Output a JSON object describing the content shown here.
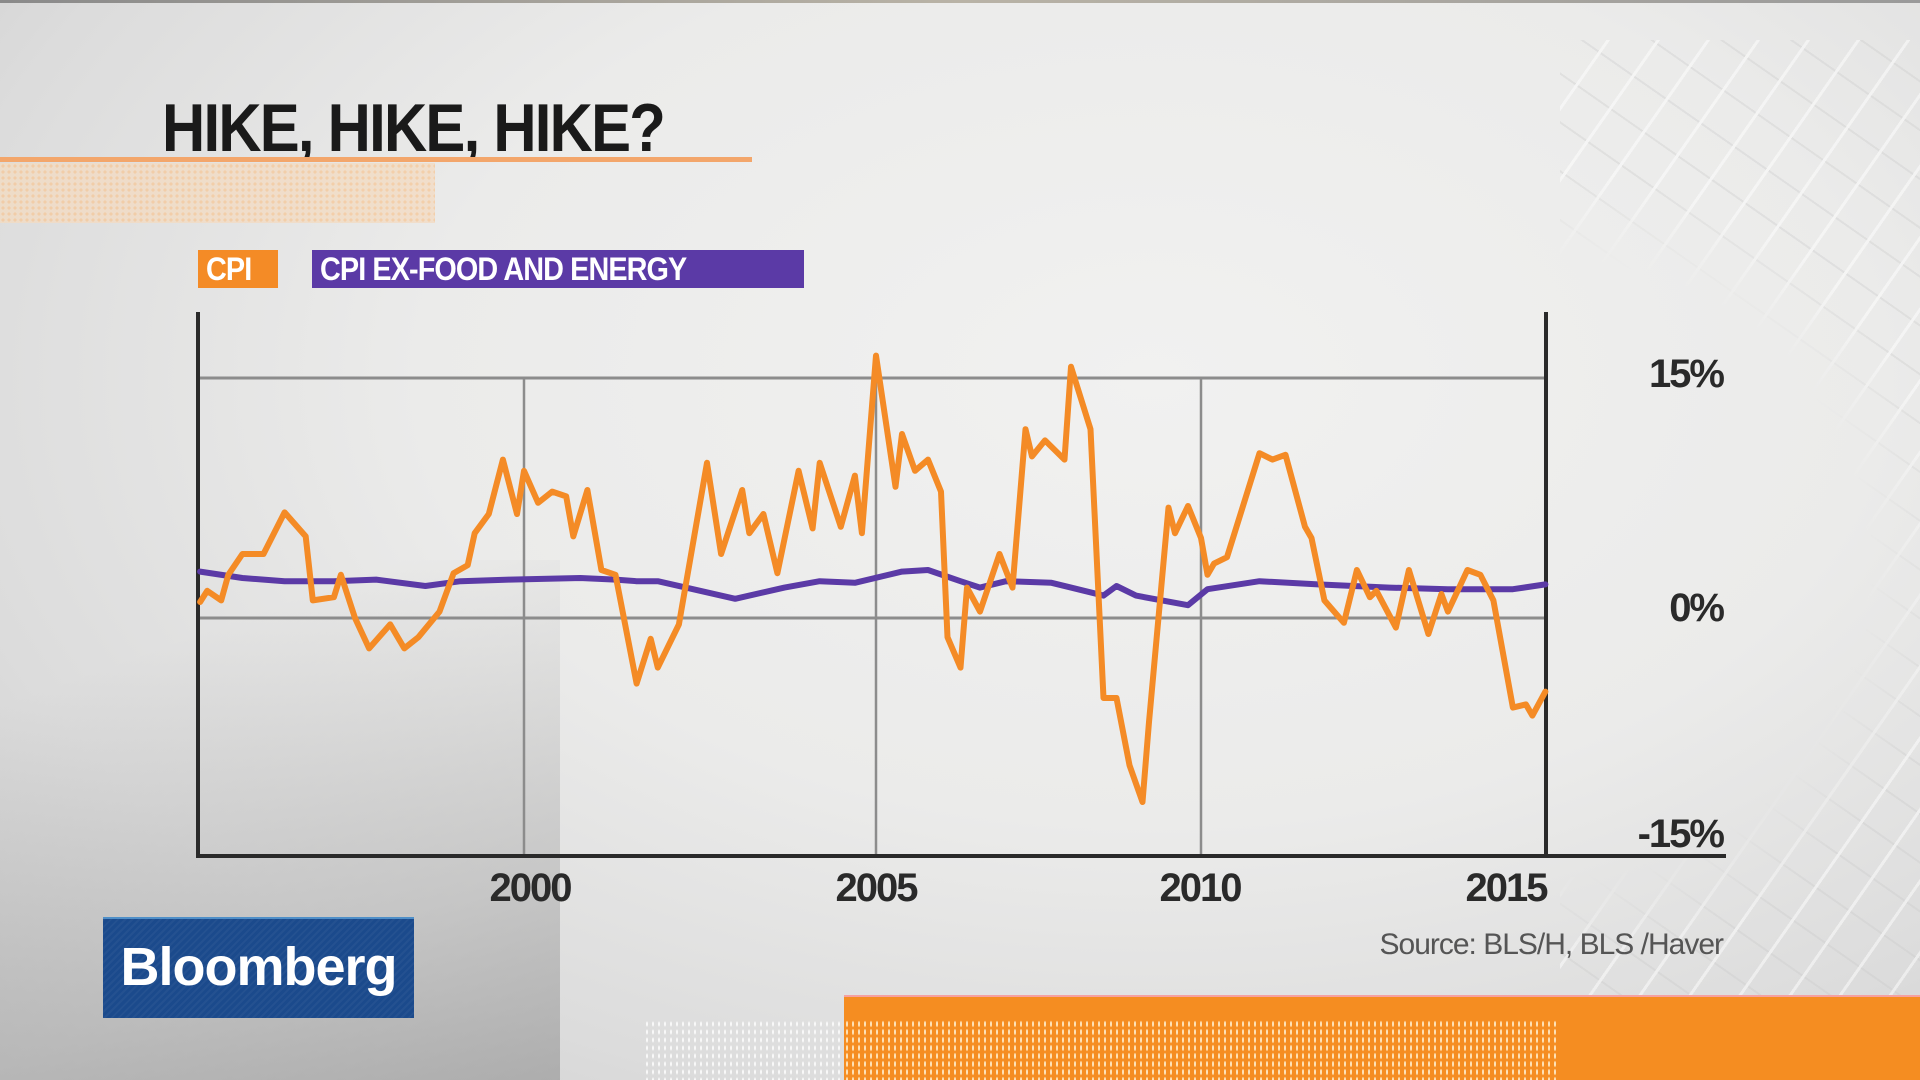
{
  "title": "HIKE, HIKE, HIKE?",
  "legend": {
    "cpi": "CPI",
    "core": "CPI EX-FOOD AND ENERGY"
  },
  "colors": {
    "cpi": "#f48b26",
    "core": "#5b3aa6",
    "brand_orange": "#f58d21",
    "logo_blue": "#1b4a8c"
  },
  "axis": {
    "y_ticks": [
      "15%",
      "0%",
      "-15%"
    ],
    "x_ticks": [
      "2000",
      "2005",
      "2010",
      "2015"
    ]
  },
  "source": "Source: BLS/H, BLS /Haver",
  "logo": "Bloomberg",
  "chart_data": {
    "type": "line",
    "title": "HIKE, HIKE, HIKE?",
    "xlabel": "",
    "ylabel": "",
    "xlim": [
      1995.4,
      2015.3
    ],
    "ylim": [
      -15,
      18
    ],
    "y_ticks": [
      15,
      0,
      -15
    ],
    "x_ticks": [
      2000,
      2005,
      2010,
      2015
    ],
    "grid": true,
    "legend_position": "top-left",
    "series": [
      {
        "name": "CPI",
        "color": "#f48b26",
        "x": [
          1995.4,
          1995.5,
          1995.7,
          1995.8,
          1996.0,
          1996.3,
          1996.6,
          1996.9,
          1997.0,
          1997.3,
          1997.4,
          1997.6,
          1997.8,
          1998.1,
          1998.3,
          1998.5,
          1998.8,
          1999.0,
          1999.2,
          1999.3,
          1999.5,
          1999.7,
          1999.9,
          2000.0,
          2000.2,
          2000.4,
          2000.6,
          2000.7,
          2000.9,
          2001.1,
          2001.3,
          2001.6,
          2001.8,
          2001.9,
          2002.2,
          2002.6,
          2002.8,
          2003.1,
          2003.2,
          2003.4,
          2003.6,
          2003.9,
          2004.1,
          2004.2,
          2004.5,
          2004.7,
          2004.8,
          2005.0,
          2005.3,
          2005.4,
          2005.6,
          2005.8,
          2006.0,
          2006.1,
          2006.3,
          2006.4,
          2006.6,
          2006.9,
          2007.1,
          2007.3,
          2007.4,
          2007.6,
          2007.9,
          2008.0,
          2008.3,
          2008.5,
          2008.7,
          2008.9,
          2009.1,
          2009.2,
          2009.5,
          2009.6,
          2009.8,
          2010.0,
          2010.1,
          2010.2,
          2010.4,
          2010.9,
          2011.1,
          2011.3,
          2011.6,
          2011.7,
          2011.9,
          2012.2,
          2012.4,
          2012.6,
          2012.7,
          2013.0,
          2013.2,
          2013.5,
          2013.7,
          2013.8,
          2014.1,
          2014.3,
          2014.5,
          2014.8,
          2015.0,
          2015.1,
          2015.3
        ],
        "values": [
          1.0,
          1.7,
          1.1,
          2.7,
          4.0,
          4.0,
          6.6,
          5.1,
          1.1,
          1.3,
          2.7,
          0.0,
          -1.9,
          -0.4,
          -1.9,
          -1.2,
          0.4,
          2.8,
          3.3,
          5.3,
          6.5,
          9.9,
          6.5,
          9.2,
          7.2,
          7.9,
          7.6,
          5.1,
          8.0,
          3.0,
          2.7,
          -4.1,
          -1.3,
          -3.1,
          -0.4,
          9.7,
          4.0,
          8.0,
          5.3,
          6.5,
          2.8,
          9.2,
          5.6,
          9.7,
          5.7,
          8.9,
          5.3,
          16.4,
          8.2,
          11.5,
          9.2,
          9.9,
          7.9,
          -1.2,
          -3.1,
          1.9,
          0.4,
          4.0,
          1.9,
          11.8,
          10.1,
          11.1,
          9.9,
          15.7,
          11.8,
          -5.0,
          -5.0,
          -9.2,
          -11.5,
          -6.5,
          6.9,
          5.3,
          7.0,
          5.0,
          2.7,
          3.4,
          3.8,
          10.3,
          9.9,
          10.2,
          5.7,
          5.0,
          1.1,
          -0.3,
          3.0,
          1.3,
          1.7,
          -0.6,
          3.0,
          -1.0,
          1.5,
          0.4,
          3.0,
          2.7,
          1.1,
          -5.6,
          -5.4,
          -6.1,
          -4.6
        ]
      },
      {
        "name": "CPI EX-FOOD AND ENERGY",
        "color": "#5b3aa6",
        "x": [
          1995.4,
          1996.0,
          1996.6,
          1997.3,
          1997.9,
          1998.6,
          1999.1,
          1999.8,
          2000.8,
          2001.3,
          2001.6,
          2001.9,
          2002.3,
          2003.0,
          2003.7,
          2004.2,
          2004.7,
          2005.4,
          2005.8,
          2006.3,
          2006.6,
          2007.0,
          2007.7,
          2008.0,
          2008.5,
          2008.7,
          2009.0,
          2009.8,
          2010.1,
          2010.9,
          2011.8,
          2012.9,
          2013.8,
          2014.8,
          2015.3
        ],
        "values": [
          2.9,
          2.5,
          2.3,
          2.3,
          2.4,
          2.0,
          2.3,
          2.4,
          2.5,
          2.4,
          2.3,
          2.3,
          1.9,
          1.2,
          1.9,
          2.3,
          2.2,
          2.9,
          3.0,
          2.3,
          1.9,
          2.3,
          2.2,
          1.9,
          1.4,
          2.0,
          1.4,
          0.8,
          1.8,
          2.3,
          2.1,
          1.9,
          1.8,
          1.8,
          2.1
        ]
      }
    ]
  }
}
